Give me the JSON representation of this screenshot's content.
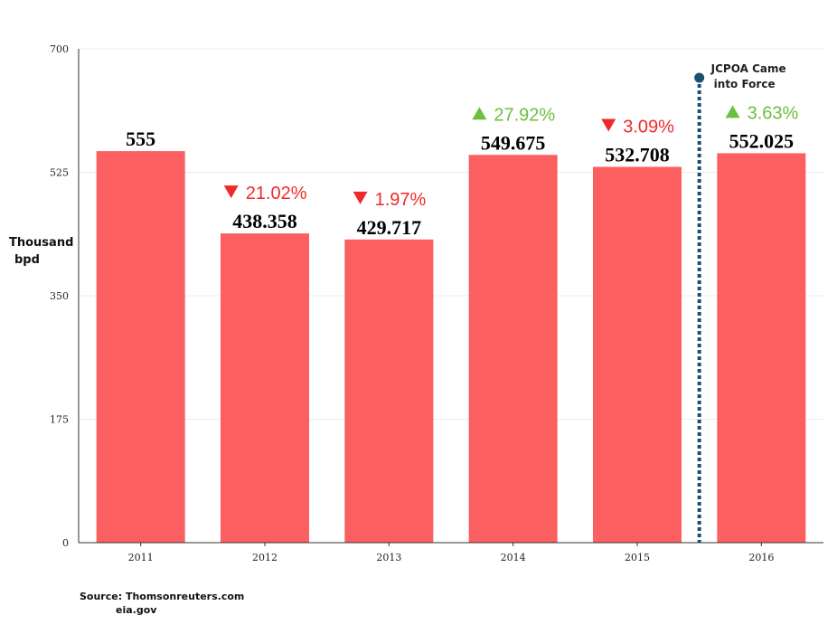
{
  "chart_data": {
    "type": "bar",
    "categories": [
      "2011",
      "2012",
      "2013",
      "2014",
      "2015",
      "2016"
    ],
    "values": [
      555,
      438.358,
      429.717,
      549.675,
      532.708,
      552.025
    ],
    "value_labels": [
      "555",
      "438.358",
      "429.717",
      "549.675",
      "532.708",
      "552.025"
    ],
    "changes": [
      null,
      {
        "direction": "down",
        "text": "21.02%"
      },
      {
        "direction": "down",
        "text": "1.97%"
      },
      {
        "direction": "up",
        "text": "27.92%"
      },
      {
        "direction": "down",
        "text": "3.09%"
      },
      {
        "direction": "up",
        "text": "3.63%"
      }
    ],
    "ylabel_lines": [
      "Thousand",
      "bpd"
    ],
    "ylim": [
      0,
      700
    ],
    "yticks": [
      0,
      175,
      350,
      525,
      700
    ],
    "grid": true,
    "bar_color": "#fb5f5f",
    "up_color": "#6cbf3f",
    "down_color": "#f02a2a",
    "annotation": {
      "lines": [
        "JCPOA Came",
        "into Force"
      ],
      "between": [
        "2015",
        "2016"
      ],
      "color": "#1b4f72"
    }
  },
  "source": {
    "line1": "Source: Thomsonreuters.com",
    "line2": "eia.gov"
  }
}
